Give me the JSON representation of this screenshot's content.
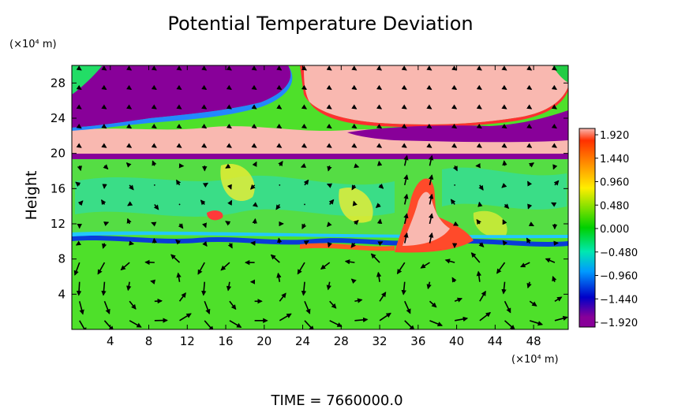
{
  "chart_data": {
    "type": "heatmap",
    "title": "Potential Temperature Deviation",
    "ylabel": "Height",
    "x_unit_label": "(×10⁴ m)",
    "y_unit_label": "(×10⁴ m)",
    "xlim": [
      0,
      51.6
    ],
    "ylim": [
      0,
      30
    ],
    "x_ticks": [
      4,
      8,
      12,
      16,
      20,
      24,
      28,
      32,
      36,
      40,
      44,
      48
    ],
    "y_ticks": [
      4,
      8,
      12,
      16,
      20,
      24,
      28
    ],
    "colorbar": {
      "ticks": [
        "1.920",
        "1.440",
        "0.960",
        "0.480",
        "0.000",
        "−0.480",
        "−0.960",
        "−1.440",
        "−1.920"
      ],
      "range": [
        -1.92,
        1.92
      ],
      "stops": [
        "#f9b8b0",
        "#ff2a00",
        "#ffa500",
        "#ffee00",
        "#66dd00",
        "#00d400",
        "#00e8b0",
        "#009aff",
        "#0000c8",
        "#880099"
      ]
    },
    "overlay": "wind vector arrows",
    "footer": "TIME = 7660000.0"
  }
}
